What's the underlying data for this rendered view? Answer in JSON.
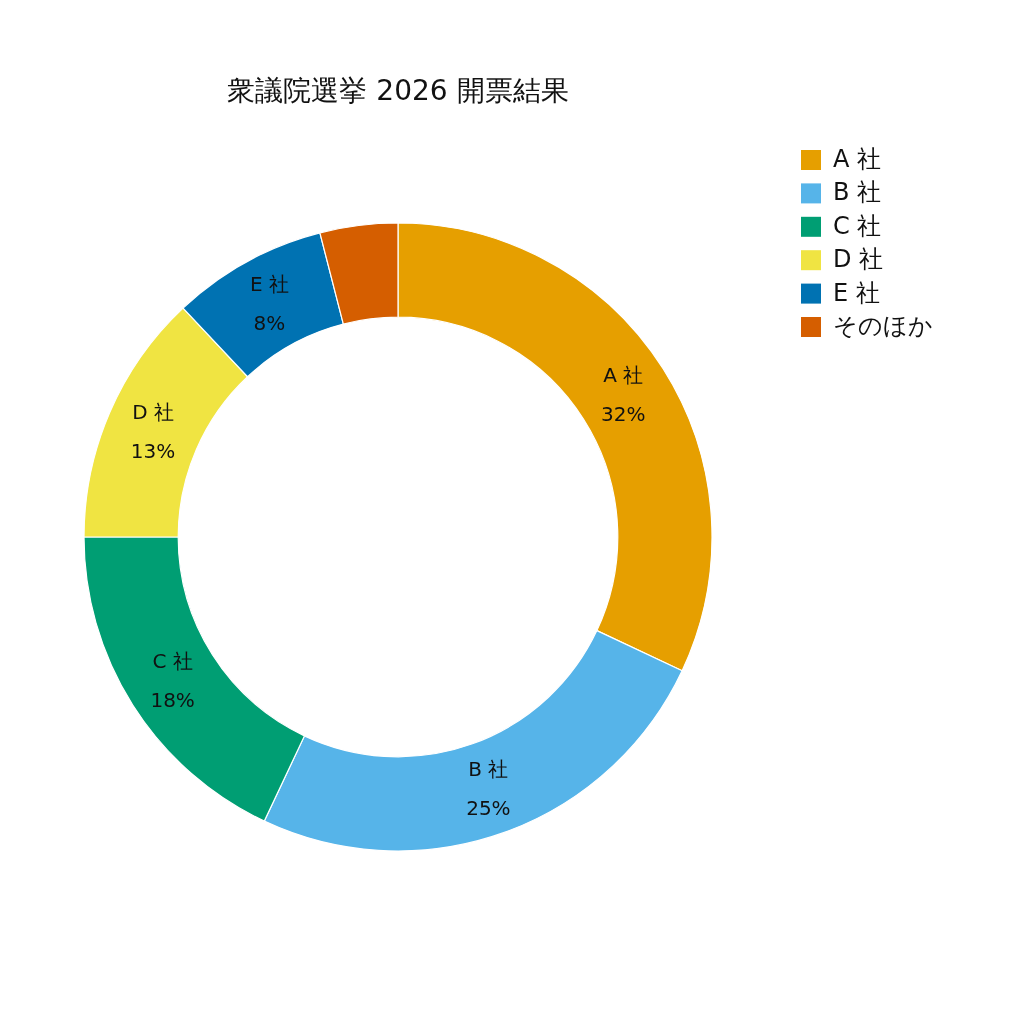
{
  "chart_data": {
    "type": "donut",
    "title": "衆議院選挙 2026 開票結果",
    "categories": [
      "A 社",
      "B 社",
      "C 社",
      "D 社",
      "E 社",
      "そのほか"
    ],
    "values": [
      32,
      25,
      18,
      13,
      8,
      4
    ],
    "colors": [
      "#e69f00",
      "#56b4e9",
      "#009e73",
      "#f0e442",
      "#0072b2",
      "#d55e00"
    ],
    "value_labels": [
      "32%",
      "25%",
      "18%",
      "13%",
      "8%",
      null
    ],
    "legend": "top right"
  }
}
